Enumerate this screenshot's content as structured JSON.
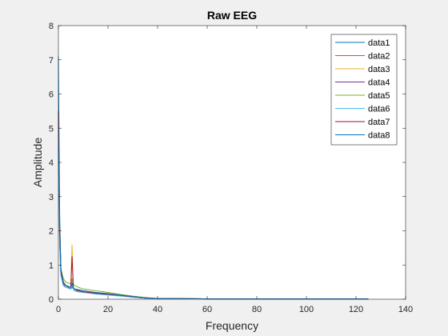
{
  "chart_data": {
    "type": "line",
    "title": "Raw EEG",
    "xlabel": "Frequency",
    "ylabel": "Amplitude",
    "xlim": [
      0,
      140
    ],
    "ylim": [
      0,
      8
    ],
    "xticks": [
      0,
      20,
      40,
      60,
      80,
      100,
      120,
      140
    ],
    "yticks": [
      0,
      1,
      2,
      3,
      4,
      5,
      6,
      7,
      8
    ],
    "grid": false,
    "legend_position": "top-right",
    "series": [
      {
        "name": "data1",
        "color": "#0072BD",
        "x": [
          0,
          0.5,
          1,
          2,
          3,
          5,
          5.5,
          6,
          6.5,
          8,
          10,
          15,
          20,
          25,
          30,
          35,
          40,
          60,
          80,
          100,
          125
        ],
        "y": [
          7.1,
          2.5,
          0.9,
          0.5,
          0.4,
          0.3,
          0.35,
          0.3,
          0.25,
          0.25,
          0.22,
          0.18,
          0.15,
          0.12,
          0.08,
          0.04,
          0.02,
          0.01,
          0.01,
          0.01,
          0.01
        ]
      },
      {
        "name": "data2",
        "color": "#D95319",
        "x": [
          0,
          0.5,
          1,
          2,
          3,
          5,
          5.5,
          6,
          6.5,
          8,
          10,
          15,
          20,
          25,
          30,
          35,
          40,
          60,
          80,
          100,
          125
        ],
        "y": [
          5.2,
          2.0,
          0.8,
          0.45,
          0.35,
          0.3,
          0.5,
          0.3,
          0.25,
          0.22,
          0.2,
          0.16,
          0.14,
          0.1,
          0.07,
          0.03,
          0.02,
          0.01,
          0.01,
          0.01,
          0.01
        ]
      },
      {
        "name": "data3",
        "color": "#EDB120",
        "x": [
          0,
          0.5,
          1,
          2,
          3,
          5,
          5.5,
          6,
          6.5,
          8,
          10,
          15,
          20,
          25,
          30,
          35,
          40,
          60,
          80,
          100,
          125
        ],
        "y": [
          4.8,
          1.9,
          0.8,
          0.45,
          0.4,
          0.35,
          1.6,
          0.35,
          0.3,
          0.28,
          0.25,
          0.2,
          0.17,
          0.12,
          0.08,
          0.04,
          0.02,
          0.01,
          0.01,
          0.01,
          0.01
        ]
      },
      {
        "name": "data4",
        "color": "#7E2F8E",
        "x": [
          0,
          0.5,
          1,
          2,
          3,
          5,
          5.5,
          6,
          6.5,
          8,
          10,
          15,
          20,
          25,
          30,
          35,
          40,
          60,
          80,
          100,
          125
        ],
        "y": [
          4.5,
          1.7,
          0.7,
          0.4,
          0.35,
          0.3,
          0.4,
          0.3,
          0.25,
          0.22,
          0.2,
          0.16,
          0.13,
          0.1,
          0.06,
          0.03,
          0.02,
          0.01,
          0.01,
          0.01,
          0.01
        ]
      },
      {
        "name": "data5",
        "color": "#77AC30",
        "x": [
          0,
          0.5,
          1,
          2,
          3,
          5,
          5.5,
          6,
          6.5,
          8,
          10,
          15,
          20,
          25,
          30,
          35,
          40,
          60,
          80,
          100,
          125
        ],
        "y": [
          4.9,
          2.1,
          0.9,
          0.6,
          0.5,
          0.45,
          0.6,
          0.45,
          0.4,
          0.35,
          0.3,
          0.25,
          0.2,
          0.14,
          0.09,
          0.05,
          0.02,
          0.01,
          0.01,
          0.01,
          0.01
        ]
      },
      {
        "name": "data6",
        "color": "#4DBEEE",
        "x": [
          0,
          0.5,
          1,
          2,
          3,
          5,
          5.5,
          6,
          6.5,
          8,
          10,
          15,
          20,
          25,
          30,
          35,
          40,
          60,
          80,
          100,
          125
        ],
        "y": [
          4.2,
          1.6,
          0.7,
          0.4,
          0.35,
          0.3,
          0.4,
          0.3,
          0.25,
          0.22,
          0.2,
          0.15,
          0.12,
          0.09,
          0.06,
          0.03,
          0.02,
          0.01,
          0.01,
          0.01,
          0.01
        ]
      },
      {
        "name": "data7",
        "color": "#A2142F",
        "x": [
          0,
          0.5,
          1,
          2,
          3,
          5,
          5.5,
          6,
          6.5,
          8,
          10,
          15,
          20,
          25,
          30,
          35,
          40,
          60,
          80,
          100,
          125
        ],
        "y": [
          5.5,
          2.2,
          0.85,
          0.5,
          0.4,
          0.35,
          1.25,
          0.35,
          0.3,
          0.25,
          0.22,
          0.18,
          0.15,
          0.11,
          0.07,
          0.04,
          0.02,
          0.01,
          0.01,
          0.01,
          0.01
        ]
      },
      {
        "name": "data8",
        "color": "#0072BD",
        "x": [
          0,
          0.5,
          1,
          2,
          3,
          5,
          5.5,
          6,
          6.5,
          8,
          10,
          15,
          20,
          25,
          30,
          35,
          40,
          60,
          80,
          100,
          125
        ],
        "y": [
          5.0,
          2.0,
          0.8,
          0.45,
          0.4,
          0.35,
          0.45,
          0.35,
          0.3,
          0.28,
          0.25,
          0.2,
          0.16,
          0.12,
          0.08,
          0.04,
          0.02,
          0.01,
          0.01,
          0.01,
          0.01
        ]
      }
    ]
  }
}
